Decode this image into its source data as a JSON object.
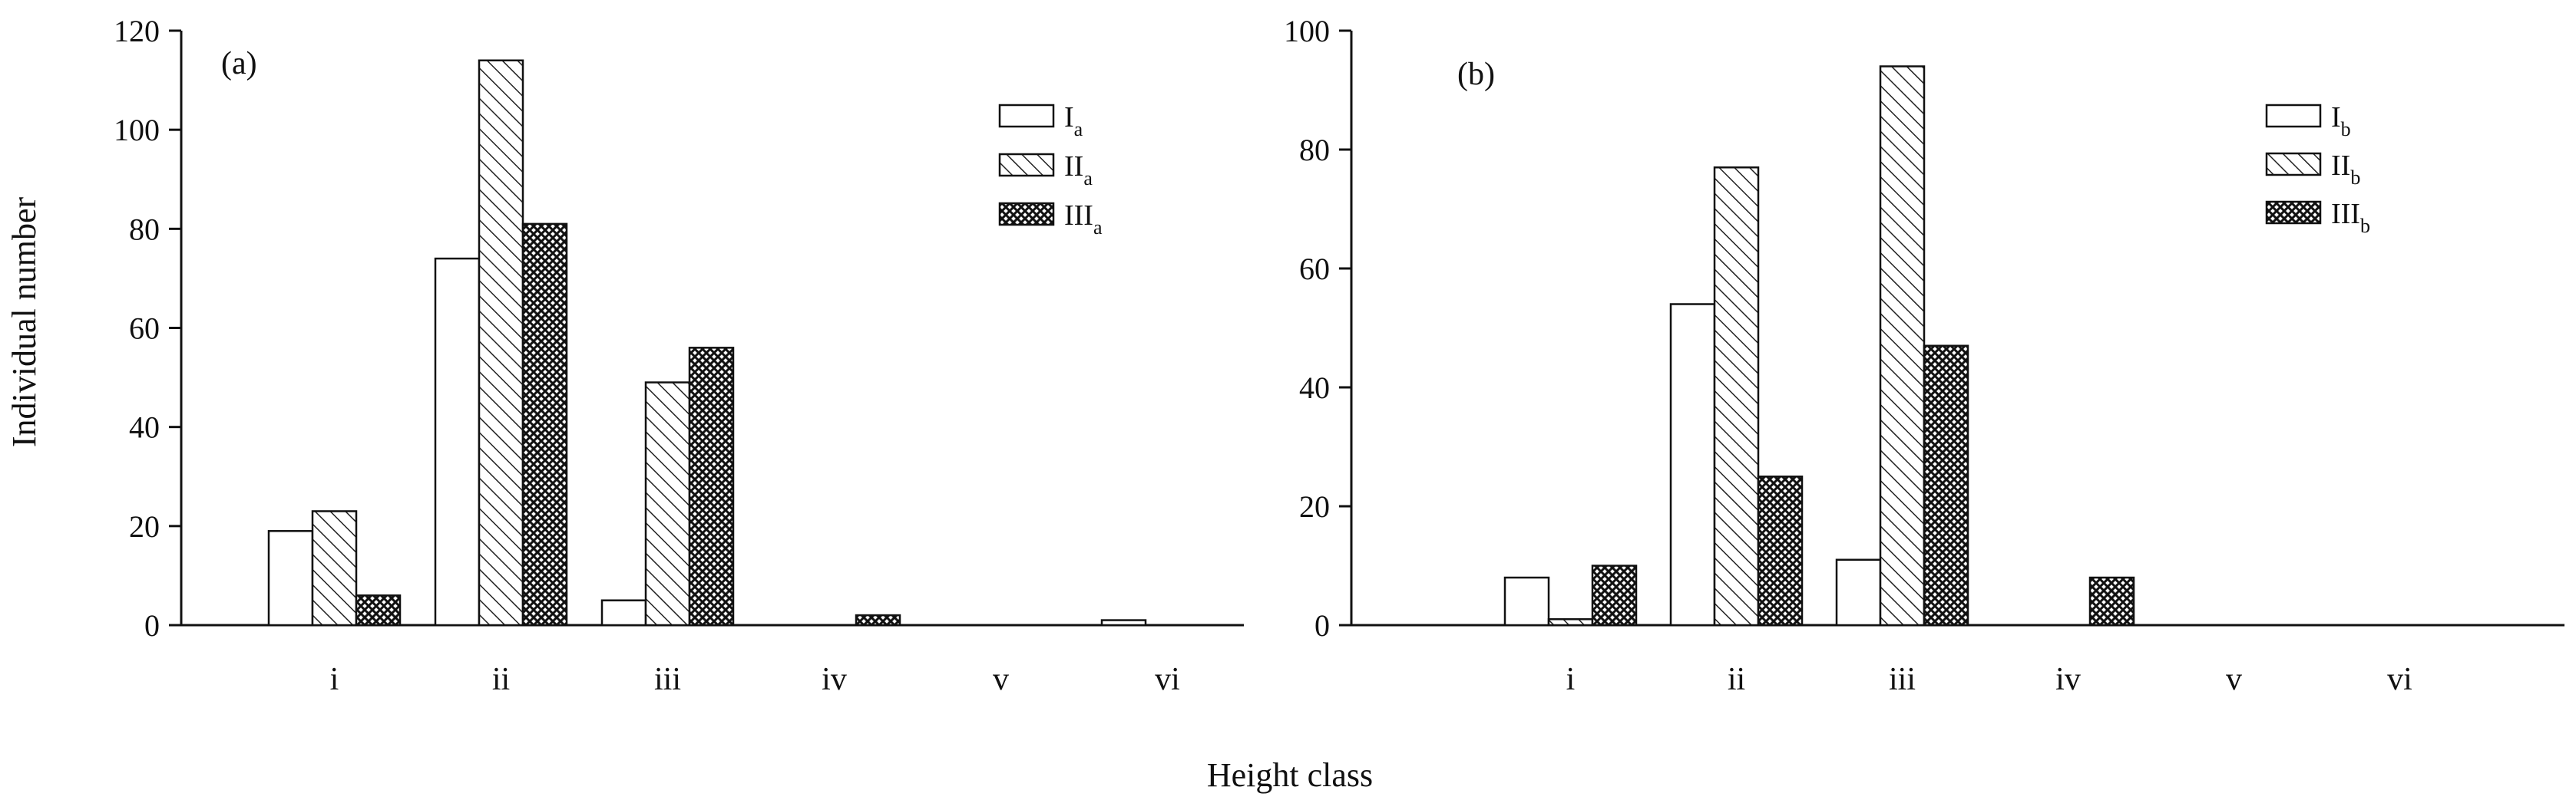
{
  "figure": {
    "shared_xlabel": "Height class",
    "shared_ylabel": "Individual number"
  },
  "chart_data": [
    {
      "type": "bar",
      "panel_label": "(a)",
      "categories": [
        "i",
        "ii",
        "iii",
        "iv",
        "v",
        "vi"
      ],
      "ylim": [
        0,
        120
      ],
      "yticks": [
        0,
        20,
        40,
        60,
        80,
        100,
        120
      ],
      "xlabel": "Height class",
      "ylabel": "Individual number",
      "legend_position": "top-right",
      "grid": false,
      "series": [
        {
          "name": "I",
          "sub": "a",
          "pattern": "open",
          "values": [
            19,
            74,
            5,
            0,
            0,
            1
          ]
        },
        {
          "name": "II",
          "sub": "a",
          "pattern": "hatch",
          "values": [
            23,
            114,
            49,
            0,
            0,
            0
          ]
        },
        {
          "name": "III",
          "sub": "a",
          "pattern": "crosshatch",
          "values": [
            6,
            81,
            56,
            2,
            0,
            0
          ]
        }
      ]
    },
    {
      "type": "bar",
      "panel_label": "(b)",
      "categories": [
        "i",
        "ii",
        "iii",
        "iv",
        "v",
        "vi"
      ],
      "ylim": [
        0,
        100
      ],
      "yticks": [
        0,
        20,
        40,
        60,
        80,
        100
      ],
      "xlabel": "Height class",
      "ylabel": "",
      "legend_position": "top-right",
      "grid": false,
      "series": [
        {
          "name": "I",
          "sub": "b",
          "pattern": "open",
          "values": [
            8,
            54,
            11,
            0,
            0,
            0
          ]
        },
        {
          "name": "II",
          "sub": "b",
          "pattern": "hatch",
          "values": [
            1,
            77,
            94,
            0,
            0,
            0
          ]
        },
        {
          "name": "III",
          "sub": "b",
          "pattern": "crosshatch",
          "values": [
            10,
            25,
            47,
            8,
            0,
            0
          ]
        }
      ]
    }
  ]
}
